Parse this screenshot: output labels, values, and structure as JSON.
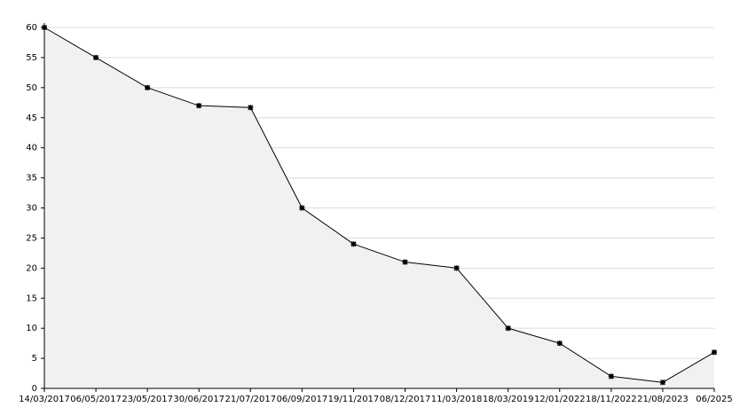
{
  "chart_data": {
    "type": "area",
    "categories": [
      "14/03/2017",
      "06/05/2017",
      "23/05/2017",
      "30/06/2017",
      "21/07/2017",
      "06/09/2017",
      "19/11/2017",
      "08/12/2017",
      "11/03/2018",
      "18/03/2019",
      "12/01/2022",
      "18/11/2022",
      "21/08/2023",
      "06/2025"
    ],
    "values": [
      60,
      55,
      50,
      47,
      46.7,
      30,
      24,
      21,
      20,
      10,
      7.5,
      2,
      1,
      6
    ],
    "color": "#000000",
    "fill": "#f1f1f1",
    "ylim": [
      0,
      60
    ],
    "yticks": [
      0,
      5,
      10,
      15,
      20,
      25,
      30,
      35,
      40,
      45,
      50,
      55,
      60
    ],
    "grid": true
  }
}
